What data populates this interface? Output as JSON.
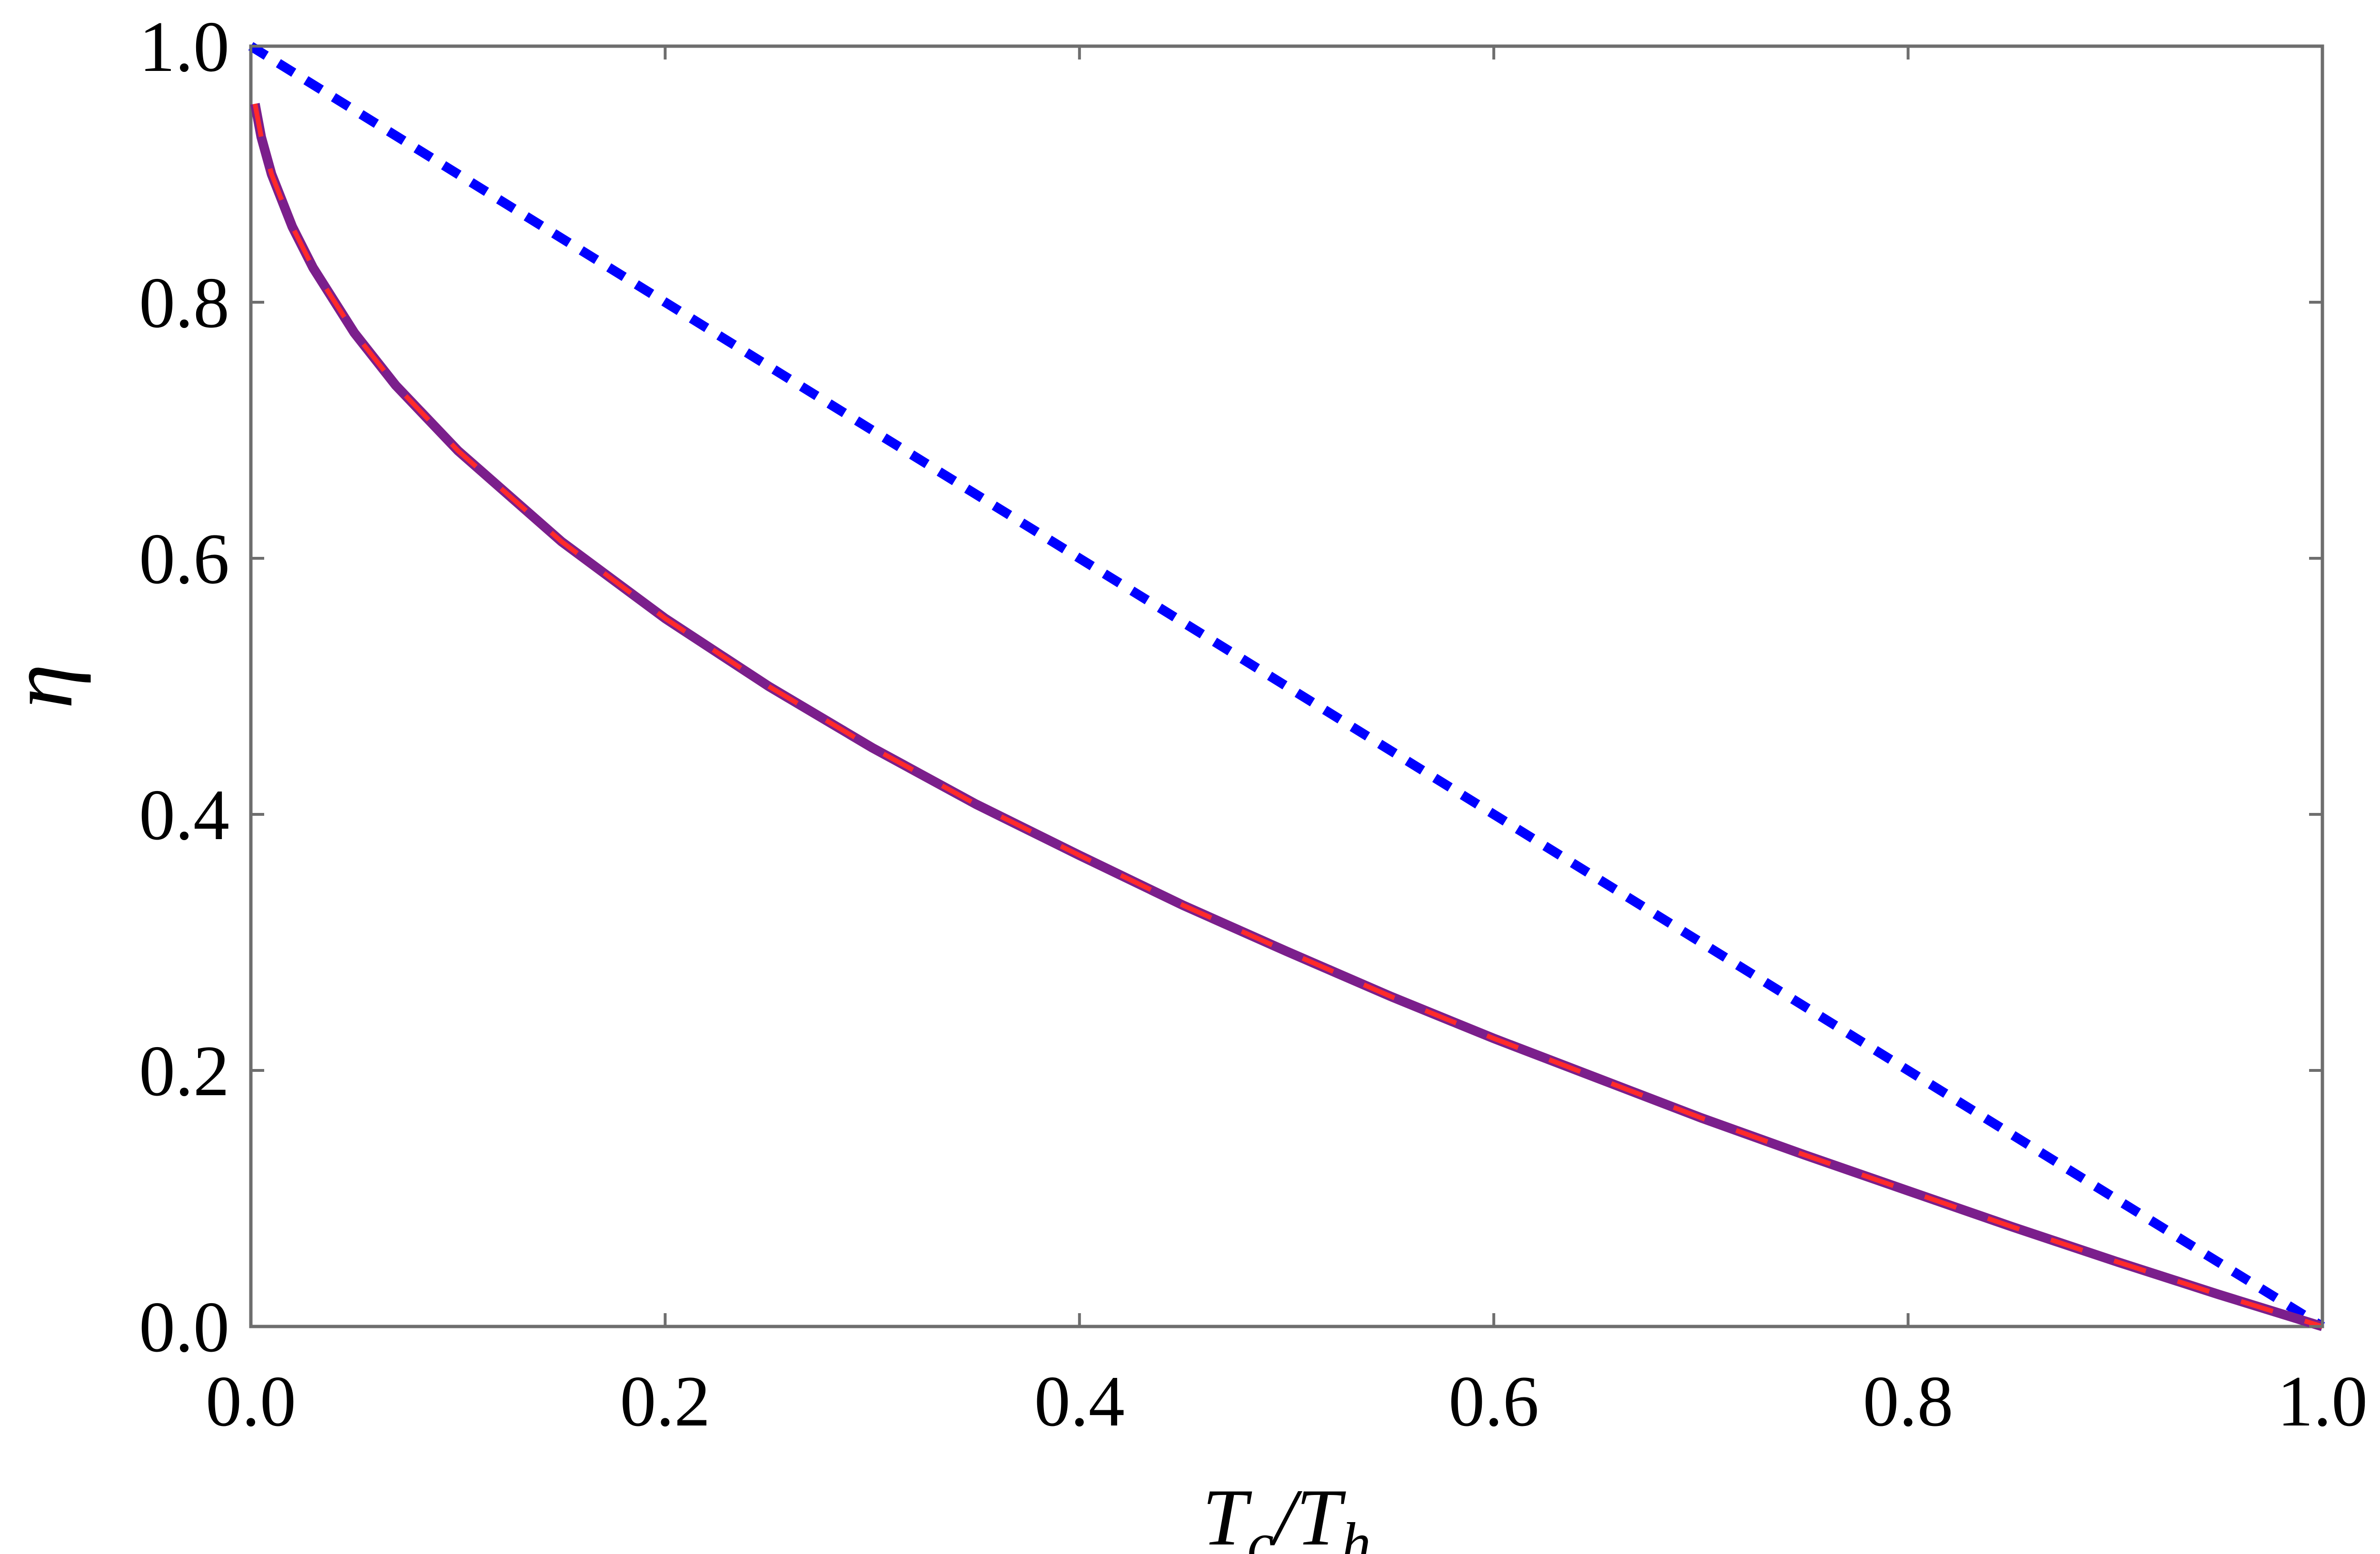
{
  "chart_data": {
    "type": "line",
    "title": "",
    "xlabel": "T_c/T_h",
    "ylabel": "η",
    "xlim": [
      0.0,
      1.0
    ],
    "ylim": [
      0.0,
      1.0
    ],
    "grid": false,
    "legend": "none",
    "x_ticks": [
      "0.0",
      "0.2",
      "0.4",
      "0.6",
      "0.8",
      "1.0"
    ],
    "y_ticks": [
      "0.0",
      "0.2",
      "0.4",
      "0.6",
      "0.8",
      "1.0"
    ],
    "series": [
      {
        "style": "dotted",
        "color": "#0000ff",
        "points": [
          [
            0.0,
            1.0
          ],
          [
            1.0,
            0.0
          ]
        ]
      },
      {
        "style": "solid",
        "color": "#7b1f8c",
        "points": [
          [
            0.002,
            0.955
          ],
          [
            0.005,
            0.929
          ],
          [
            0.01,
            0.9
          ],
          [
            0.02,
            0.859
          ],
          [
            0.03,
            0.827
          ],
          [
            0.05,
            0.776
          ],
          [
            0.07,
            0.735
          ],
          [
            0.1,
            0.684
          ],
          [
            0.15,
            0.613
          ],
          [
            0.2,
            0.553
          ],
          [
            0.25,
            0.5
          ],
          [
            0.3,
            0.452
          ],
          [
            0.35,
            0.408
          ],
          [
            0.4,
            0.368
          ],
          [
            0.45,
            0.329
          ],
          [
            0.5,
            0.293
          ],
          [
            0.55,
            0.258
          ],
          [
            0.6,
            0.225
          ],
          [
            0.65,
            0.194
          ],
          [
            0.7,
            0.163
          ],
          [
            0.75,
            0.134
          ],
          [
            0.8,
            0.106
          ],
          [
            0.85,
            0.078
          ],
          [
            0.9,
            0.051
          ],
          [
            0.95,
            0.025
          ],
          [
            1.0,
            0.0
          ]
        ]
      },
      {
        "style": "dashed",
        "color": "#ff2a2a",
        "points": [
          [
            0.002,
            0.955
          ],
          [
            0.005,
            0.929
          ],
          [
            0.01,
            0.9
          ],
          [
            0.02,
            0.859
          ],
          [
            0.03,
            0.827
          ],
          [
            0.05,
            0.776
          ],
          [
            0.07,
            0.735
          ],
          [
            0.1,
            0.684
          ],
          [
            0.15,
            0.613
          ],
          [
            0.2,
            0.553
          ],
          [
            0.25,
            0.5
          ],
          [
            0.3,
            0.452
          ],
          [
            0.35,
            0.408
          ],
          [
            0.4,
            0.368
          ],
          [
            0.45,
            0.329
          ],
          [
            0.5,
            0.293
          ],
          [
            0.55,
            0.258
          ],
          [
            0.6,
            0.225
          ],
          [
            0.65,
            0.194
          ],
          [
            0.7,
            0.163
          ],
          [
            0.75,
            0.134
          ],
          [
            0.8,
            0.106
          ],
          [
            0.85,
            0.078
          ],
          [
            0.9,
            0.051
          ],
          [
            0.95,
            0.025
          ],
          [
            1.0,
            0.0
          ]
        ]
      }
    ]
  }
}
